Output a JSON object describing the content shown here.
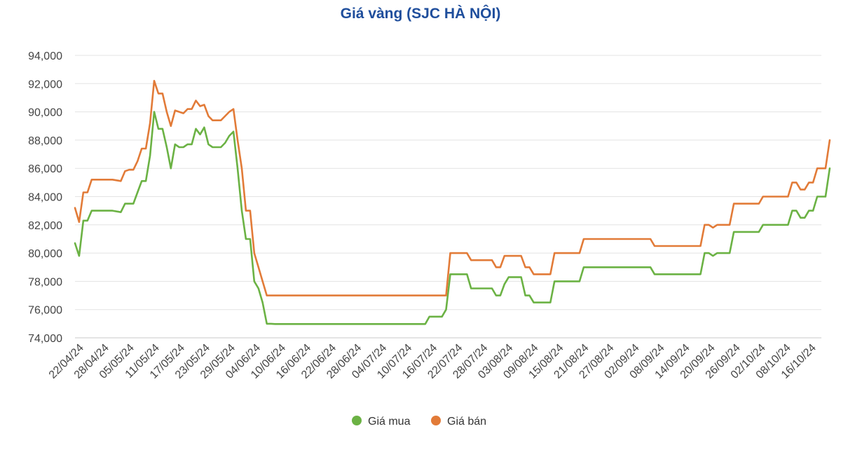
{
  "chart_data": {
    "type": "line",
    "title": "Giá vàng (SJC HÀ NỘI)",
    "xlabel": "",
    "ylabel": "",
    "ylim": [
      74000,
      94000
    ],
    "yticks": [
      74000,
      76000,
      78000,
      80000,
      82000,
      84000,
      86000,
      88000,
      90000,
      92000,
      94000
    ],
    "ytick_labels": [
      "74,000",
      "76,000",
      "78,000",
      "80,000",
      "82,000",
      "84,000",
      "86,000",
      "88,000",
      "90,000",
      "92,000",
      "94,000"
    ],
    "x_start": "2024-04-22",
    "x_end": "2024-10-18",
    "xtick_labels": [
      "22/04/24",
      "28/04/24",
      "05/05/24",
      "11/05/24",
      "17/05/24",
      "23/05/24",
      "29/05/24",
      "04/06/24",
      "10/06/24",
      "16/06/24",
      "22/06/24",
      "28/06/24",
      "04/07/24",
      "10/07/24",
      "16/07/24",
      "22/07/24",
      "28/07/24",
      "03/08/24",
      "09/08/24",
      "15/08/24",
      "21/08/24",
      "27/08/24",
      "02/09/24",
      "08/09/24",
      "14/09/24",
      "20/09/24",
      "26/09/24",
      "02/10/24",
      "08/10/24",
      "16/10/24"
    ],
    "grid": true,
    "legend_position": "bottom",
    "series": [
      {
        "name": "Giá mua",
        "color": "#6bb244",
        "points": [
          [
            "2024-04-22",
            80700
          ],
          [
            "2024-04-23",
            79800
          ],
          [
            "2024-04-24",
            82300
          ],
          [
            "2024-04-25",
            82300
          ],
          [
            "2024-04-26",
            83000
          ],
          [
            "2024-04-29",
            83000
          ],
          [
            "2024-05-01",
            83000
          ],
          [
            "2024-05-03",
            82900
          ],
          [
            "2024-05-04",
            83500
          ],
          [
            "2024-05-06",
            83500
          ],
          [
            "2024-05-07",
            84300
          ],
          [
            "2024-05-08",
            85100
          ],
          [
            "2024-05-09",
            85100
          ],
          [
            "2024-05-10",
            86900
          ],
          [
            "2024-05-11",
            90000
          ],
          [
            "2024-05-12",
            88800
          ],
          [
            "2024-05-13",
            88800
          ],
          [
            "2024-05-14",
            87500
          ],
          [
            "2024-05-15",
            86000
          ],
          [
            "2024-05-16",
            87700
          ],
          [
            "2024-05-17",
            87500
          ],
          [
            "2024-05-18",
            87500
          ],
          [
            "2024-05-19",
            87700
          ],
          [
            "2024-05-20",
            87700
          ],
          [
            "2024-05-21",
            88800
          ],
          [
            "2024-05-22",
            88400
          ],
          [
            "2024-05-23",
            88900
          ],
          [
            "2024-05-24",
            87700
          ],
          [
            "2024-05-25",
            87500
          ],
          [
            "2024-05-27",
            87500
          ],
          [
            "2024-05-28",
            87800
          ],
          [
            "2024-05-29",
            88300
          ],
          [
            "2024-05-30",
            88600
          ],
          [
            "2024-05-31",
            86000
          ],
          [
            "2024-06-01",
            83000
          ],
          [
            "2024-06-02",
            81000
          ],
          [
            "2024-06-03",
            81000
          ],
          [
            "2024-06-04",
            78000
          ],
          [
            "2024-06-05",
            77500
          ],
          [
            "2024-06-06",
            76500
          ],
          [
            "2024-06-07",
            75000
          ],
          [
            "2024-06-08",
            75000
          ],
          [
            "2024-06-09",
            74980
          ],
          [
            "2024-07-15",
            74980
          ],
          [
            "2024-07-16",
            75500
          ],
          [
            "2024-07-19",
            75500
          ],
          [
            "2024-07-20",
            76000
          ],
          [
            "2024-07-21",
            78500
          ],
          [
            "2024-07-25",
            78500
          ],
          [
            "2024-07-26",
            77500
          ],
          [
            "2024-07-31",
            77500
          ],
          [
            "2024-08-01",
            77000
          ],
          [
            "2024-08-02",
            77000
          ],
          [
            "2024-08-03",
            77800
          ],
          [
            "2024-08-04",
            78300
          ],
          [
            "2024-08-07",
            78300
          ],
          [
            "2024-08-08",
            77000
          ],
          [
            "2024-08-09",
            77000
          ],
          [
            "2024-08-10",
            76500
          ],
          [
            "2024-08-14",
            76500
          ],
          [
            "2024-08-15",
            78000
          ],
          [
            "2024-08-21",
            78000
          ],
          [
            "2024-08-22",
            79000
          ],
          [
            "2024-09-07",
            79000
          ],
          [
            "2024-09-08",
            78500
          ],
          [
            "2024-09-19",
            78500
          ],
          [
            "2024-09-20",
            80000
          ],
          [
            "2024-09-21",
            80000
          ],
          [
            "2024-09-22",
            79800
          ],
          [
            "2024-09-23",
            80000
          ],
          [
            "2024-09-26",
            80000
          ],
          [
            "2024-09-27",
            81500
          ],
          [
            "2024-10-03",
            81500
          ],
          [
            "2024-10-04",
            82000
          ],
          [
            "2024-10-10",
            82000
          ],
          [
            "2024-10-11",
            83000
          ],
          [
            "2024-10-12",
            83000
          ],
          [
            "2024-10-13",
            82500
          ],
          [
            "2024-10-14",
            82500
          ],
          [
            "2024-10-15",
            83000
          ],
          [
            "2024-10-16",
            83000
          ],
          [
            "2024-10-17",
            84000
          ],
          [
            "2024-10-19",
            84000
          ],
          [
            "2024-10-20",
            86000
          ]
        ]
      },
      {
        "name": "Giá bán",
        "color": "#e27b38",
        "points": [
          [
            "2024-04-22",
            83200
          ],
          [
            "2024-04-23",
            82200
          ],
          [
            "2024-04-24",
            84300
          ],
          [
            "2024-04-25",
            84300
          ],
          [
            "2024-04-26",
            85200
          ],
          [
            "2024-04-29",
            85200
          ],
          [
            "2024-05-01",
            85200
          ],
          [
            "2024-05-03",
            85100
          ],
          [
            "2024-05-04",
            85800
          ],
          [
            "2024-05-05",
            85900
          ],
          [
            "2024-05-06",
            85900
          ],
          [
            "2024-05-07",
            86500
          ],
          [
            "2024-05-08",
            87400
          ],
          [
            "2024-05-09",
            87400
          ],
          [
            "2024-05-10",
            89200
          ],
          [
            "2024-05-11",
            92200
          ],
          [
            "2024-05-12",
            91300
          ],
          [
            "2024-05-13",
            91300
          ],
          [
            "2024-05-14",
            90000
          ],
          [
            "2024-05-15",
            89000
          ],
          [
            "2024-05-16",
            90100
          ],
          [
            "2024-05-17",
            90000
          ],
          [
            "2024-05-18",
            89900
          ],
          [
            "2024-05-19",
            90200
          ],
          [
            "2024-05-20",
            90200
          ],
          [
            "2024-05-21",
            90800
          ],
          [
            "2024-05-22",
            90400
          ],
          [
            "2024-05-23",
            90500
          ],
          [
            "2024-05-24",
            89700
          ],
          [
            "2024-05-25",
            89400
          ],
          [
            "2024-05-27",
            89400
          ],
          [
            "2024-05-28",
            89700
          ],
          [
            "2024-05-29",
            90000
          ],
          [
            "2024-05-30",
            90200
          ],
          [
            "2024-05-31",
            88000
          ],
          [
            "2024-06-01",
            86000
          ],
          [
            "2024-06-02",
            83000
          ],
          [
            "2024-06-03",
            83000
          ],
          [
            "2024-06-04",
            80000
          ],
          [
            "2024-06-05",
            79000
          ],
          [
            "2024-06-06",
            78000
          ],
          [
            "2024-06-07",
            77000
          ],
          [
            "2024-07-20",
            77000
          ],
          [
            "2024-07-21",
            80000
          ],
          [
            "2024-07-25",
            80000
          ],
          [
            "2024-07-26",
            79500
          ],
          [
            "2024-07-31",
            79500
          ],
          [
            "2024-08-01",
            79000
          ],
          [
            "2024-08-02",
            79000
          ],
          [
            "2024-08-03",
            79800
          ],
          [
            "2024-08-07",
            79800
          ],
          [
            "2024-08-08",
            79000
          ],
          [
            "2024-08-09",
            79000
          ],
          [
            "2024-08-10",
            78500
          ],
          [
            "2024-08-14",
            78500
          ],
          [
            "2024-08-15",
            80000
          ],
          [
            "2024-08-21",
            80000
          ],
          [
            "2024-08-22",
            81000
          ],
          [
            "2024-09-07",
            81000
          ],
          [
            "2024-09-08",
            80500
          ],
          [
            "2024-09-19",
            80500
          ],
          [
            "2024-09-20",
            82000
          ],
          [
            "2024-09-21",
            82000
          ],
          [
            "2024-09-22",
            81800
          ],
          [
            "2024-09-23",
            82000
          ],
          [
            "2024-09-26",
            82000
          ],
          [
            "2024-09-27",
            83500
          ],
          [
            "2024-10-03",
            83500
          ],
          [
            "2024-10-04",
            84000
          ],
          [
            "2024-10-10",
            84000
          ],
          [
            "2024-10-11",
            85000
          ],
          [
            "2024-10-12",
            85000
          ],
          [
            "2024-10-13",
            84500
          ],
          [
            "2024-10-14",
            84500
          ],
          [
            "2024-10-15",
            85000
          ],
          [
            "2024-10-16",
            85000
          ],
          [
            "2024-10-17",
            86000
          ],
          [
            "2024-10-19",
            86000
          ],
          [
            "2024-10-20",
            88000
          ]
        ]
      }
    ]
  }
}
